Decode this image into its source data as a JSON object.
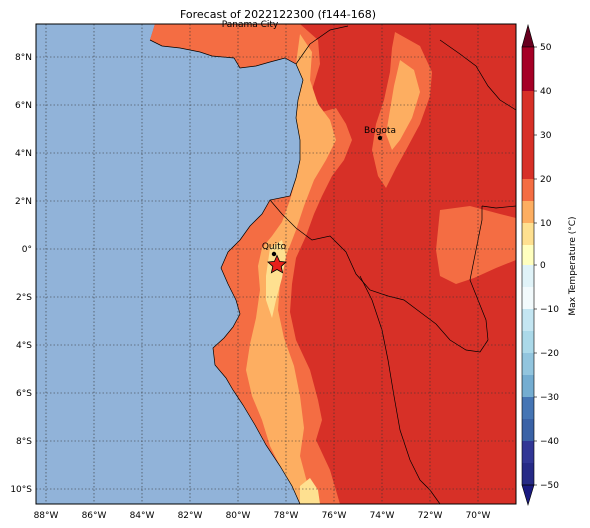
{
  "title": "Forecast of 2022122300 (f144-168)",
  "map": {
    "lat_ticks": [
      "8°N",
      "6°N",
      "4°N",
      "2°N",
      "0°",
      "2°S",
      "4°S",
      "6°S",
      "8°S",
      "10°S"
    ],
    "lon_ticks": [
      "88°W",
      "86°W",
      "84°W",
      "82°W",
      "80°W",
      "78°W",
      "76°W",
      "74°W",
      "72°W",
      "70°W"
    ],
    "cities": [
      {
        "name": "Panama City"
      },
      {
        "name": "Bogota"
      },
      {
        "name": "Quito"
      }
    ],
    "marker": "red-star"
  },
  "colorbar": {
    "label": "Max Temperature (°C)",
    "ticks": [
      "50",
      "40",
      "30",
      "20",
      "10",
      "0",
      "−10",
      "−20",
      "−30",
      "−40",
      "−50"
    ],
    "colors": [
      "#67001f",
      "#b2182b",
      "#d6392a",
      "#f46d43",
      "#fdae61",
      "#fee090",
      "#ffffbf",
      "#e0f3f8",
      "#abd9e9",
      "#74add1",
      "#4575b4",
      "#313695",
      "#1a1a80"
    ]
  },
  "colors": {
    "ocean": "#91b3d9",
    "land_base": "#d73027",
    "warm_1": "#f46d43",
    "warm_2": "#fdae61",
    "warm_3": "#fee090"
  }
}
